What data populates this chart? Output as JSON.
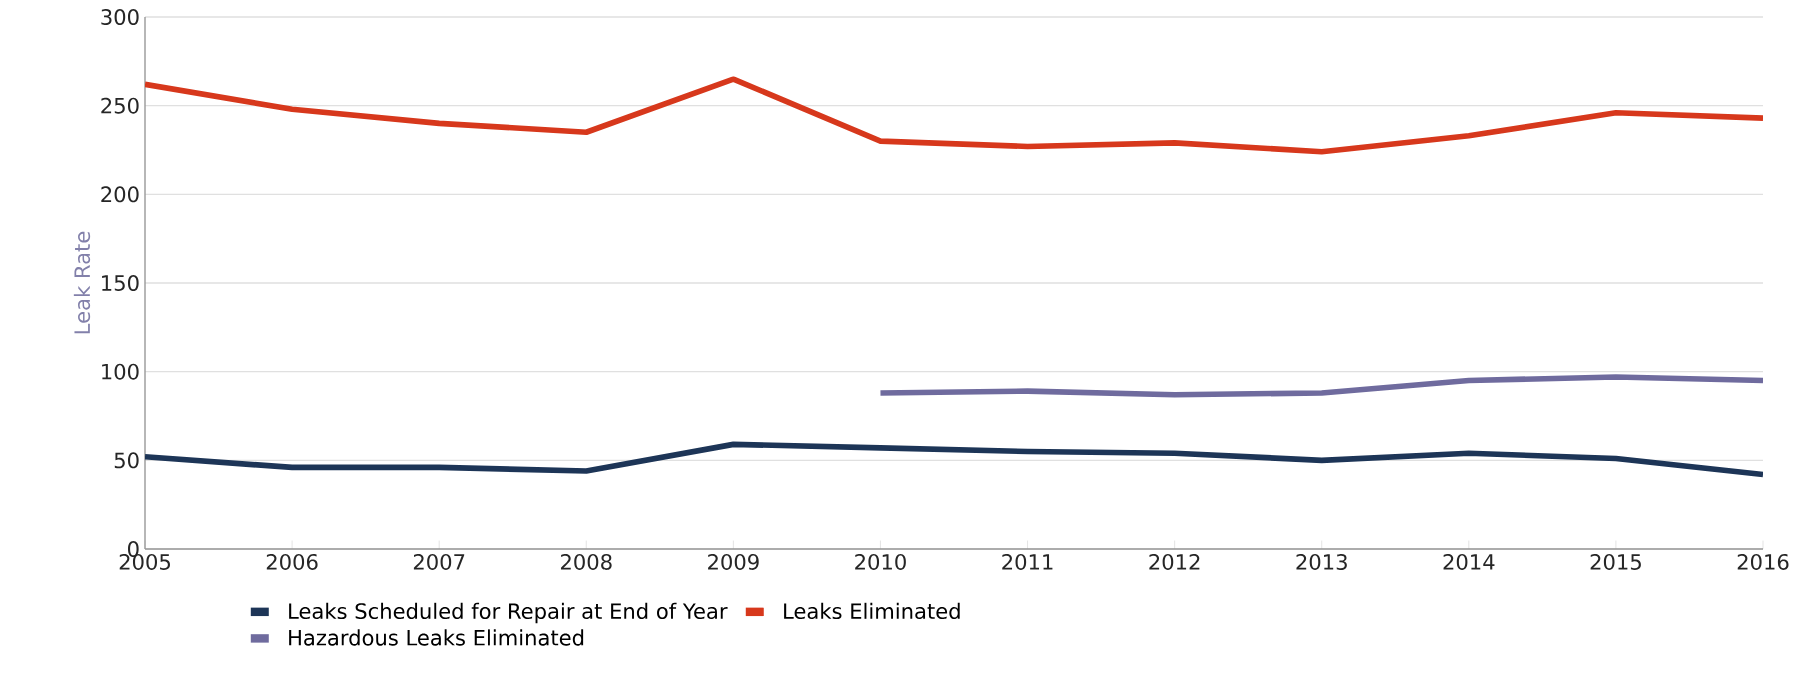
{
  "chart_data": {
    "type": "line",
    "ylabel": "Leak Rate",
    "x": [
      2005,
      2006,
      2007,
      2008,
      2009,
      2010,
      2011,
      2012,
      2013,
      2014,
      2015,
      2016
    ],
    "series": [
      {
        "name": "Leaks Scheduled for Repair at End of Year",
        "color": "#1d3557",
        "values": [
          52,
          46,
          46,
          44,
          59,
          57,
          55,
          54,
          50,
          54,
          51,
          42
        ]
      },
      {
        "name": "Leaks Eliminated",
        "color": "#d7381c",
        "values": [
          262,
          248,
          240,
          235,
          265,
          230,
          227,
          229,
          224,
          233,
          246,
          243
        ]
      },
      {
        "name": "Hazardous Leaks Eliminated",
        "color": "#6f6b9e",
        "values": [
          null,
          null,
          null,
          null,
          null,
          88,
          89,
          87,
          88,
          95,
          97,
          95
        ]
      }
    ],
    "xlim": [
      2005,
      2016
    ],
    "xticks": [
      2005,
      2006,
      2007,
      2008,
      2009,
      2010,
      2011,
      2012,
      2013,
      2014,
      2015,
      2016
    ],
    "ylim": [
      0,
      300
    ],
    "yticks": [
      0,
      50,
      100,
      150,
      200,
      250,
      300
    ],
    "grid": "y",
    "legend": "bottom left"
  }
}
